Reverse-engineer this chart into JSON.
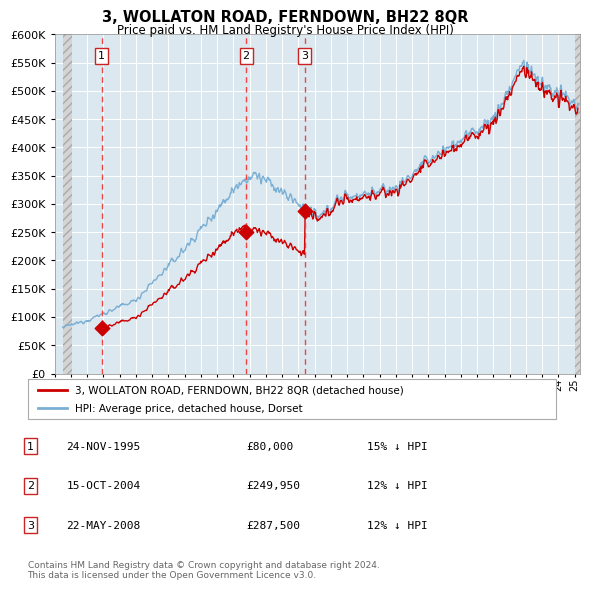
{
  "title": "3, WOLLATON ROAD, FERNDOWN, BH22 8QR",
  "subtitle": "Price paid vs. HM Land Registry's House Price Index (HPI)",
  "hpi_color": "#7bafd4",
  "sale_color": "#cc0000",
  "vline_color": "#ee4444",
  "bg_color": "#dce8f0",
  "grid_color": "#ffffff",
  "hatch_color": "#c8c8c8",
  "ylim": [
    0,
    600000
  ],
  "yticks": [
    0,
    50000,
    100000,
    150000,
    200000,
    250000,
    300000,
    350000,
    400000,
    450000,
    500000,
    550000,
    600000
  ],
  "sale_dates": [
    1995.9,
    2004.79,
    2008.38
  ],
  "sale_prices": [
    80000,
    249950,
    287500
  ],
  "sale_labels": [
    "1",
    "2",
    "3"
  ],
  "legend_label_red": "3, WOLLATON ROAD, FERNDOWN, BH22 8QR (detached house)",
  "legend_label_blue": "HPI: Average price, detached house, Dorset",
  "footnote": "Contains HM Land Registry data © Crown copyright and database right 2024.\nThis data is licensed under the Open Government Licence v3.0.",
  "table_entries": [
    {
      "num": "1",
      "date": "24-NOV-1995",
      "price": "£80,000",
      "pct": "15% ↓ HPI"
    },
    {
      "num": "2",
      "date": "15-OCT-2004",
      "price": "£249,950",
      "pct": "12% ↓ HPI"
    },
    {
      "num": "3",
      "date": "22-MAY-2008",
      "price": "£287,500",
      "pct": "12% ↓ HPI"
    }
  ],
  "xmin": 1993.5,
  "xmax": 2025.3
}
